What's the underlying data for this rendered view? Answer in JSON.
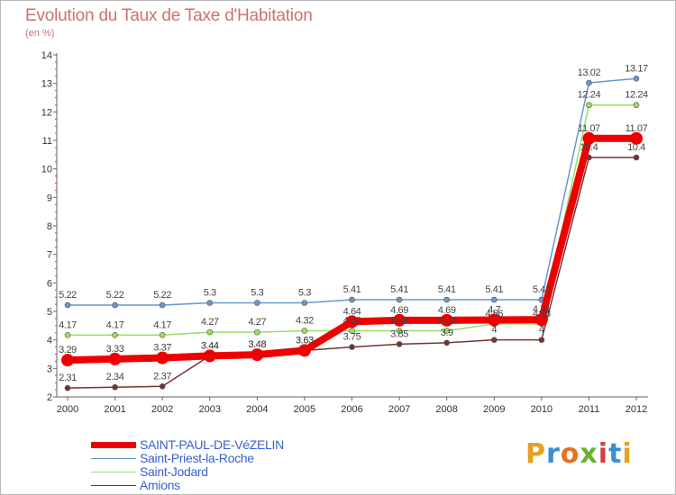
{
  "title": "Evolution du Taux de Taxe d'Habitation",
  "subtitle": "(en %)",
  "logo": {
    "text": "Proxiti",
    "letter_colors": [
      "#e8a020",
      "#3a8fd0",
      "#e87020",
      "#6ab030",
      "#d04040",
      "#3a8fd0",
      "#e8a020"
    ]
  },
  "chart_data": {
    "type": "line",
    "x": [
      "2000",
      "2001",
      "2002",
      "2003",
      "2004",
      "2005",
      "2006",
      "2007",
      "2008",
      "2009",
      "2010",
      "2011",
      "2012"
    ],
    "ylim": [
      2,
      14
    ],
    "yticks": [
      "2",
      "3",
      "4",
      "5",
      "6",
      "7",
      "8",
      "9",
      "10",
      "11",
      "12",
      "13",
      "14"
    ],
    "grid": false,
    "legend_position": "bottom-left",
    "series": [
      {
        "name": "SAINT-PAUL-DE-VéZELIN",
        "color": "#ee0000",
        "values": [
          3.29,
          3.33,
          3.37,
          3.44,
          3.48,
          3.63,
          4.64,
          4.69,
          4.69,
          4.7,
          4.71,
          11.07,
          11.07
        ],
        "labels": [
          "3.29",
          "3.33",
          "3.37",
          "3.44",
          "3.48",
          "3.63",
          "4.64",
          "4.69",
          "4.69",
          "4.7",
          "4.71",
          "11.07",
          "11.07"
        ]
      },
      {
        "name": "Saint-Priest-la-Roche",
        "color": "#6699cc",
        "values": [
          5.22,
          5.22,
          5.22,
          5.3,
          5.3,
          5.3,
          5.41,
          5.41,
          5.41,
          5.41,
          5.41,
          13.02,
          13.17
        ],
        "labels": [
          "5.22",
          "5.22",
          "5.22",
          "5.3",
          "5.3",
          "5.3",
          "5.41",
          "5.41",
          "5.41",
          "5.41",
          "5.41",
          "13.02",
          "13.17"
        ]
      },
      {
        "name": "Saint-Jodard",
        "color": "#99dd66",
        "values": [
          4.17,
          4.17,
          4.17,
          4.27,
          4.27,
          4.32,
          4.32,
          4.32,
          4.32,
          4.56,
          4.56,
          12.24,
          12.24
        ],
        "labels": [
          "4.17",
          "4.17",
          "4.17",
          "4.27",
          "4.27",
          "4.32",
          "4.32",
          "4.32",
          "4.32",
          "4.56",
          "4.56",
          "12.24",
          "12.24"
        ]
      },
      {
        "name": "Amions",
        "color": "#773333",
        "values": [
          2.31,
          2.34,
          2.37,
          3.44,
          3.48,
          3.63,
          3.75,
          3.85,
          3.9,
          4,
          4,
          10.4,
          10.4
        ],
        "labels": [
          "2.31",
          "2.34",
          "2.37",
          "3.44",
          "3.48",
          "3.63",
          "3.75",
          "3.85",
          "3.9",
          "4",
          "4",
          "10.4",
          "10.4"
        ]
      }
    ]
  }
}
